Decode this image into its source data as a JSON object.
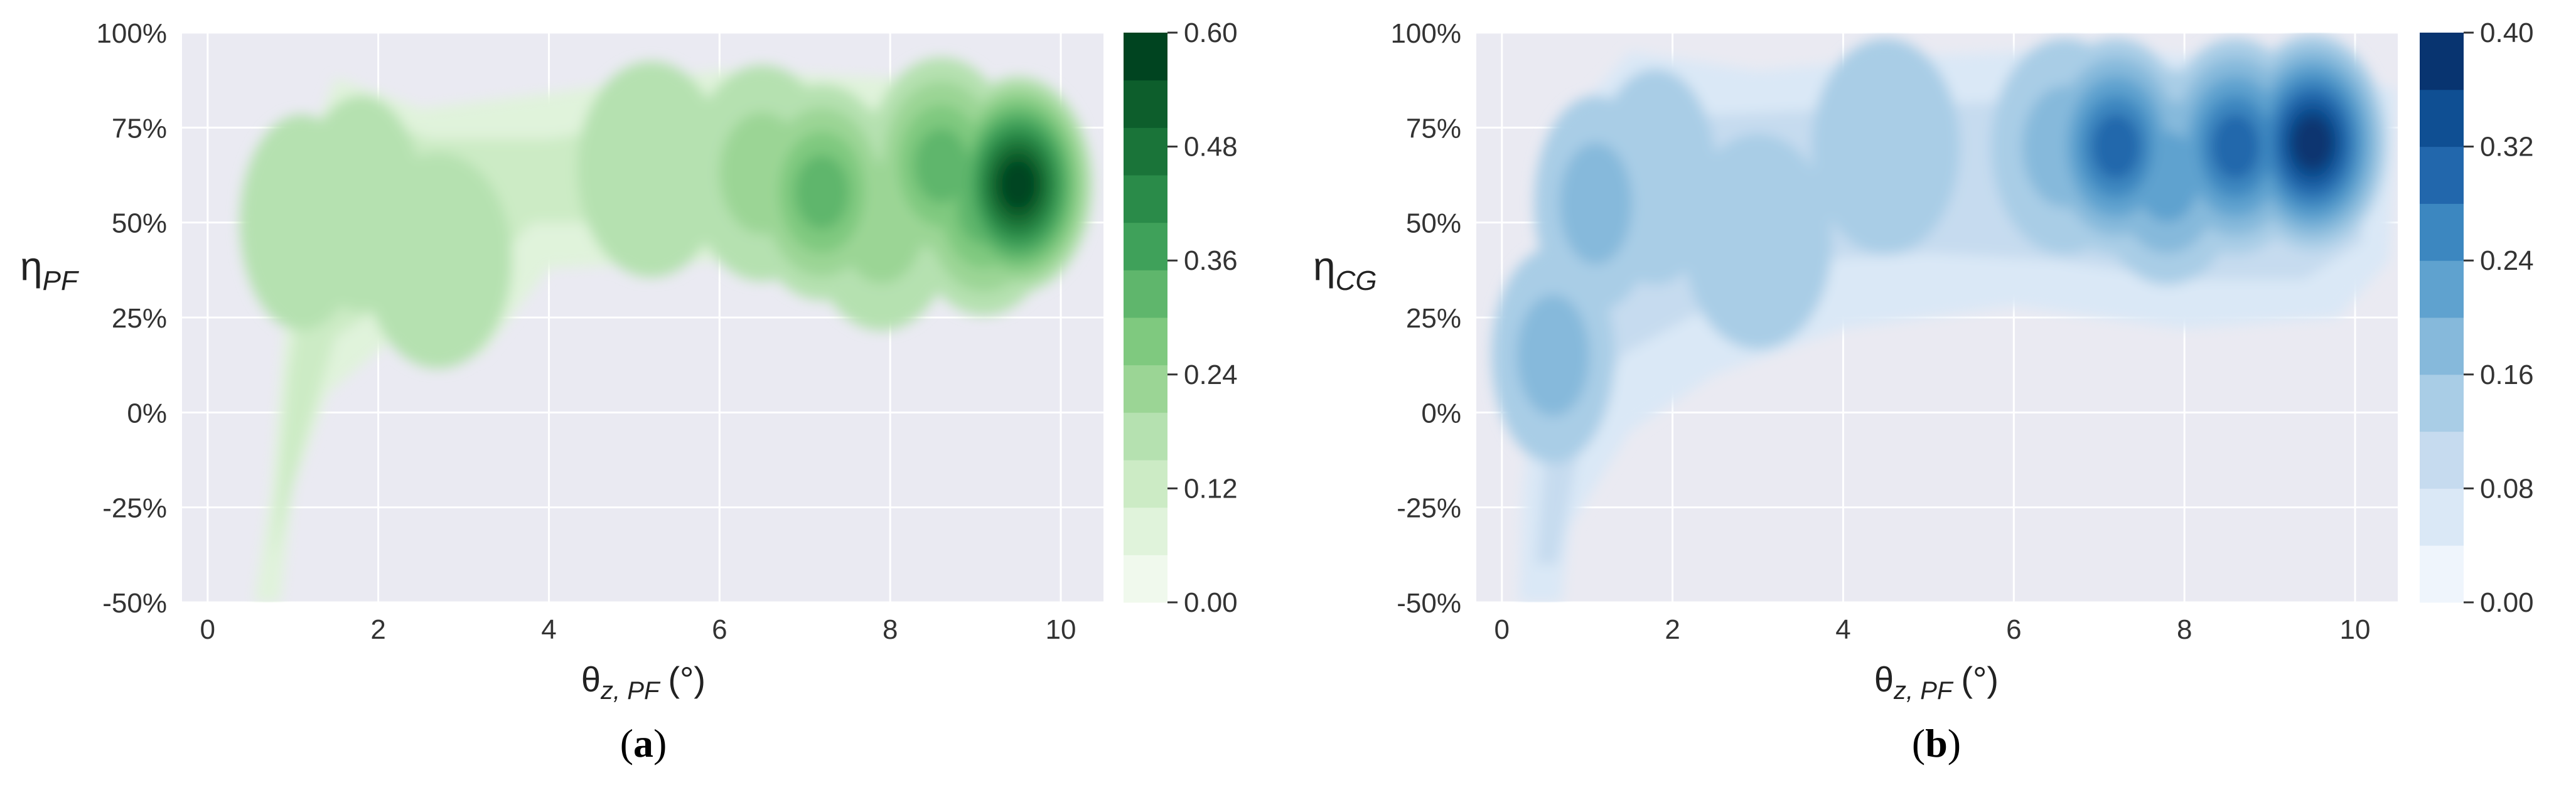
{
  "panels": [
    {
      "paren_open": "(",
      "letter": "a",
      "paren_close": ")"
    },
    {
      "paren_open": "(",
      "letter": "b",
      "paren_close": ")"
    }
  ],
  "chart_data": [
    {
      "type": "heatmap",
      "style": "filled-contour density",
      "panel": "a",
      "title": "",
      "xlabel_main": "θ",
      "xlabel_sub": "z, PF",
      "xlabel_unit": "(°)",
      "ylabel_main": "η",
      "ylabel_sub": "PF",
      "xlim": [
        -0.3,
        10.5
      ],
      "ylim": [
        -50,
        100
      ],
      "x_ticks": [
        0,
        2,
        4,
        6,
        8,
        10
      ],
      "x_tick_labels": [
        "0",
        "2",
        "4",
        "6",
        "8",
        "10"
      ],
      "y_ticks": [
        -50,
        -25,
        0,
        25,
        50,
        75,
        100
      ],
      "y_tick_labels": [
        "-50%",
        "-25%",
        "0%",
        "25%",
        "50%",
        "75%",
        "100%"
      ],
      "grid": true,
      "colorbar": {
        "colormap": "Greens",
        "range": [
          0,
          0.6
        ],
        "levels": 12,
        "ticks": [
          0,
          0.12,
          0.24,
          0.36,
          0.48,
          0.6
        ],
        "tick_labels": [
          "0.00",
          "0.12",
          "0.24",
          "0.36",
          "0.48",
          "0.60"
        ],
        "colors": [
          "#f0f9ed",
          "#e0f3db",
          "#ccebc5",
          "#b5e1b0",
          "#9bd595",
          "#7fc97f",
          "#5fb66c",
          "#3fa15a",
          "#2a8b49",
          "#1a7439",
          "#0d5e2c",
          "#004420"
        ]
      },
      "density_peaks": [
        {
          "x": 1.1,
          "y": 50,
          "density": 0.18
        },
        {
          "x": 1.8,
          "y": 55,
          "density": 0.17
        },
        {
          "x": 2.7,
          "y": 40,
          "density": 0.1
        },
        {
          "x": 5.2,
          "y": 64,
          "density": 0.12
        },
        {
          "x": 6.5,
          "y": 63,
          "density": 0.22
        },
        {
          "x": 7.2,
          "y": 58,
          "density": 0.32
        },
        {
          "x": 7.9,
          "y": 50,
          "density": 0.2
        },
        {
          "x": 8.6,
          "y": 65,
          "density": 0.3
        },
        {
          "x": 9.1,
          "y": 54,
          "density": 0.32
        },
        {
          "x": 9.5,
          "y": 60,
          "density": 0.6
        }
      ]
    },
    {
      "type": "heatmap",
      "style": "filled-contour density",
      "panel": "b",
      "title": "",
      "xlabel_main": "θ",
      "xlabel_sub": "z, PF",
      "xlabel_unit": "(°)",
      "ylabel_main": "η",
      "ylabel_sub": "CG",
      "xlim": [
        -0.3,
        10.5
      ],
      "ylim": [
        -50,
        100
      ],
      "x_ticks": [
        0,
        2,
        4,
        6,
        8,
        10
      ],
      "x_tick_labels": [
        "0",
        "2",
        "4",
        "6",
        "8",
        "10"
      ],
      "y_ticks": [
        -50,
        -25,
        0,
        25,
        50,
        75,
        100
      ],
      "y_tick_labels": [
        "-50%",
        "-25%",
        "0%",
        "25%",
        "50%",
        "75%",
        "100%"
      ],
      "grid": true,
      "colorbar": {
        "colormap": "Blues",
        "range": [
          0,
          0.4
        ],
        "levels": 10,
        "ticks": [
          0,
          0.08,
          0.16,
          0.24,
          0.32,
          0.4
        ],
        "tick_labels": [
          "0.00",
          "0.08",
          "0.16",
          "0.24",
          "0.32",
          "0.40"
        ],
        "colors": [
          "#eff5fc",
          "#dae8f6",
          "#c6dbef",
          "#a9cde6",
          "#86b9db",
          "#5fa2cf",
          "#3c87c0",
          "#2267ac",
          "#0f4f93",
          "#083470"
        ]
      },
      "density_peaks": [
        {
          "x": 0.6,
          "y": 15,
          "density": 0.16
        },
        {
          "x": 1.1,
          "y": 55,
          "density": 0.16
        },
        {
          "x": 1.8,
          "y": 62,
          "density": 0.14
        },
        {
          "x": 3.0,
          "y": 45,
          "density": 0.09
        },
        {
          "x": 4.5,
          "y": 70,
          "density": 0.09
        },
        {
          "x": 6.6,
          "y": 70,
          "density": 0.18
        },
        {
          "x": 7.2,
          "y": 70,
          "density": 0.29
        },
        {
          "x": 7.8,
          "y": 62,
          "density": 0.2
        },
        {
          "x": 8.6,
          "y": 70,
          "density": 0.32
        },
        {
          "x": 9.5,
          "y": 71,
          "density": 0.4
        }
      ]
    }
  ]
}
